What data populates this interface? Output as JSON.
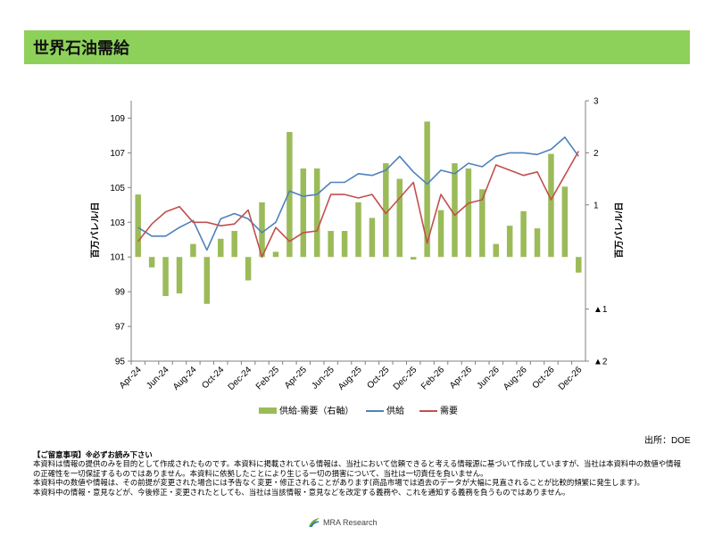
{
  "page": {
    "title": "世界石油需給",
    "source": "出所：DOE",
    "notes": {
      "heading": "【ご留意事項】※必ずお読み下さい",
      "lines": [
        "本資料は情報の提供のみを目的として作成されたものです。本資料に掲載されている情報は、当社において信頼できると考える情報源に基づいて作成していますが、当社は本資料中の数値や情報の正確性を一切保証するものではありません。本資料に依拠したことにより生じる一切の損害について、当社は一切責任を負いません。",
        "本資料中の数値や情報は、その前提が変更された場合には予告なく変更・修正されることがあります(商品市場では過去のデータが大幅に見直されることが比較的頻繁に発生します)。",
        "本資料中の情報・意見などが、今後修正・変更されたとしても、当社は当該情報・意見などを改定する義務や、これを通知する義務を負うものではありません。"
      ]
    },
    "logo_text": "MRA Research"
  },
  "chart_data": {
    "type": "bar+line",
    "title": "世界石油需給",
    "ylabel_left": "百万バレル/日",
    "ylabel_right": "百万バレル/日",
    "ylim_left": [
      95,
      110
    ],
    "yticks_left": [
      95,
      97,
      99,
      101,
      103,
      105,
      107,
      109
    ],
    "ylim_right": [
      -2,
      3
    ],
    "yticks_right": [
      {
        "value": 3,
        "label": "3",
        "color": "#000000"
      },
      {
        "value": 2,
        "label": "2",
        "color": "#000000"
      },
      {
        "value": 1,
        "label": "1",
        "color": "#000000"
      },
      {
        "value": -1,
        "label": "▲1",
        "color": "#c00000"
      },
      {
        "value": -2,
        "label": "▲2",
        "color": "#c00000"
      }
    ],
    "x": [
      "Apr-24",
      "May-24",
      "Jun-24",
      "Jul-24",
      "Aug-24",
      "Sep-24",
      "Oct-24",
      "Nov-24",
      "Dec-24",
      "Jan-25",
      "Feb-25",
      "Mar-25",
      "Apr-25",
      "May-25",
      "Jun-25",
      "Jul-25",
      "Aug-25",
      "Sep-25",
      "Oct-25",
      "Nov-25",
      "Dec-25",
      "Jan-26",
      "Feb-26",
      "Mar-26",
      "Apr-26",
      "May-26",
      "Jun-26",
      "Jul-26",
      "Aug-26",
      "Sep-26",
      "Oct-26",
      "Nov-26",
      "Dec-26"
    ],
    "x_tick_labels": [
      "Apr-24",
      "Jun-24",
      "Aug-24",
      "Oct-24",
      "Dec-24",
      "Feb-25",
      "Apr-25",
      "Jun-25",
      "Aug-25",
      "Oct-25",
      "Dec-25",
      "Feb-26",
      "Apr-26",
      "Jun-26",
      "Aug-26",
      "Oct-26",
      "Dec-26"
    ],
    "series": [
      {
        "name": "供給-需要（右軸）",
        "type": "bar",
        "axis": "right",
        "color": "#9bbb59",
        "values": [
          1.2,
          -0.2,
          -0.75,
          -0.7,
          0.25,
          -0.9,
          0.35,
          0.5,
          -0.45,
          1.05,
          0.1,
          2.4,
          1.7,
          1.7,
          0.5,
          0.5,
          1.05,
          0.75,
          1.8,
          1.5,
          -0.05,
          2.6,
          0.9,
          1.8,
          1.7,
          1.3,
          0.25,
          0.6,
          0.88,
          0.55,
          1.98,
          1.35,
          -0.3
        ]
      },
      {
        "name": "供給",
        "type": "line",
        "axis": "left",
        "color": "#4f81bd",
        "values": [
          102.7,
          102.2,
          102.2,
          102.7,
          103.1,
          101.4,
          103.2,
          103.5,
          103.2,
          102.4,
          103.0,
          104.8,
          104.5,
          104.6,
          105.3,
          105.3,
          105.8,
          105.7,
          106.0,
          106.8,
          105.9,
          105.2,
          106.0,
          105.8,
          106.4,
          106.2,
          106.8,
          107.0,
          107.0,
          106.9,
          107.2,
          107.9,
          106.8
        ]
      },
      {
        "name": "需要",
        "type": "line",
        "axis": "left",
        "color": "#c0504d",
        "values": [
          101.9,
          102.9,
          103.6,
          103.9,
          103.0,
          103.0,
          102.8,
          102.9,
          103.7,
          101.0,
          102.7,
          101.9,
          102.4,
          102.5,
          104.6,
          104.6,
          104.4,
          104.6,
          103.5,
          104.4,
          105.3,
          101.8,
          104.6,
          103.4,
          104.1,
          104.3,
          106.3,
          106.0,
          105.7,
          105.9,
          104.3,
          105.7,
          107.1
        ]
      }
    ],
    "grid": false,
    "legend_position": "bottom-center"
  }
}
